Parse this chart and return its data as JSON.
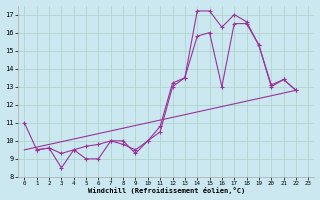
{
  "background_color": "#cbe8f0",
  "grid_color": "#b0d4cc",
  "line_color": "#993399",
  "xlabel": "Windchill (Refroidissement éolien,°C)",
  "xlim": [
    -0.5,
    23.5
  ],
  "ylim": [
    8,
    17.5
  ],
  "yticks": [
    8,
    9,
    10,
    11,
    12,
    13,
    14,
    15,
    16,
    17
  ],
  "xticks": [
    0,
    1,
    2,
    3,
    4,
    5,
    6,
    7,
    8,
    9,
    10,
    11,
    12,
    13,
    14,
    15,
    16,
    17,
    18,
    19,
    20,
    21,
    22,
    23
  ],
  "line1_x": [
    0,
    1,
    2,
    3,
    4,
    5,
    6,
    7,
    8,
    9,
    10,
    11,
    12,
    13,
    14,
    15,
    16,
    17,
    18,
    19,
    20,
    21,
    22
  ],
  "line1_y": [
    11.0,
    9.5,
    9.6,
    8.5,
    9.5,
    9.0,
    9.0,
    10.0,
    10.0,
    9.3,
    10.0,
    10.5,
    13.0,
    13.5,
    17.2,
    17.2,
    16.3,
    17.0,
    16.6,
    15.3,
    13.0,
    13.4,
    12.8
  ],
  "line2_x": [
    1,
    2,
    3,
    4,
    5,
    6,
    7,
    8,
    9,
    10,
    11,
    12,
    13,
    14,
    15,
    16,
    17,
    18,
    19,
    20,
    21,
    22
  ],
  "line2_y": [
    9.5,
    9.6,
    9.3,
    9.5,
    9.7,
    9.8,
    10.0,
    9.8,
    9.5,
    10.0,
    10.8,
    13.2,
    13.5,
    15.8,
    16.0,
    13.0,
    16.5,
    16.5,
    15.3,
    13.1,
    13.4,
    12.8
  ],
  "line3_x": [
    0,
    22
  ],
  "line3_y": [
    9.5,
    12.8
  ]
}
